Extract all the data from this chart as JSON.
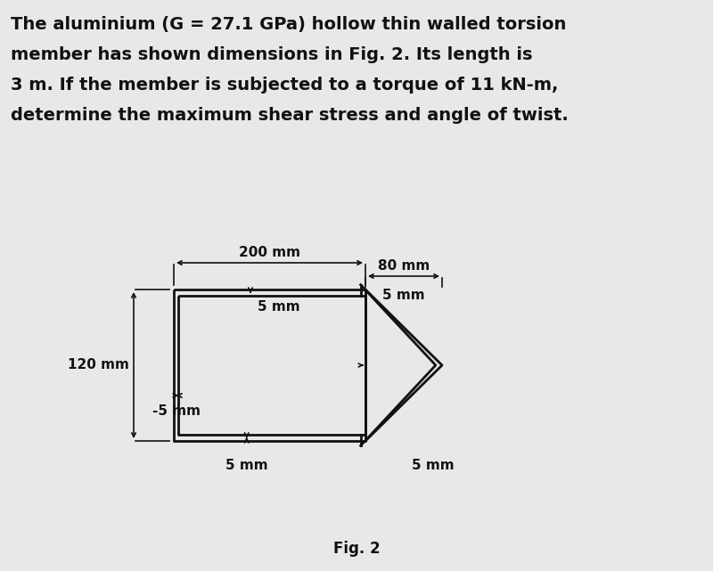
{
  "title_lines": [
    "The aluminium (G = 27.1 GPa) hollow thin walled torsion",
    "member has shown dimensions in Fig. 2. Its length is",
    "3 m. If the member is subjected to a torque of 11 kN-m,",
    "determine the maximum shear stress and angle of twist."
  ],
  "fig_label": "Fig. 2",
  "bg_color": "#e8e8e8",
  "text_color": "#111111",
  "line_color": "#111111",
  "title_fontsize": 14,
  "fig_label_fontsize": 12,
  "dim_fontsize": 11
}
